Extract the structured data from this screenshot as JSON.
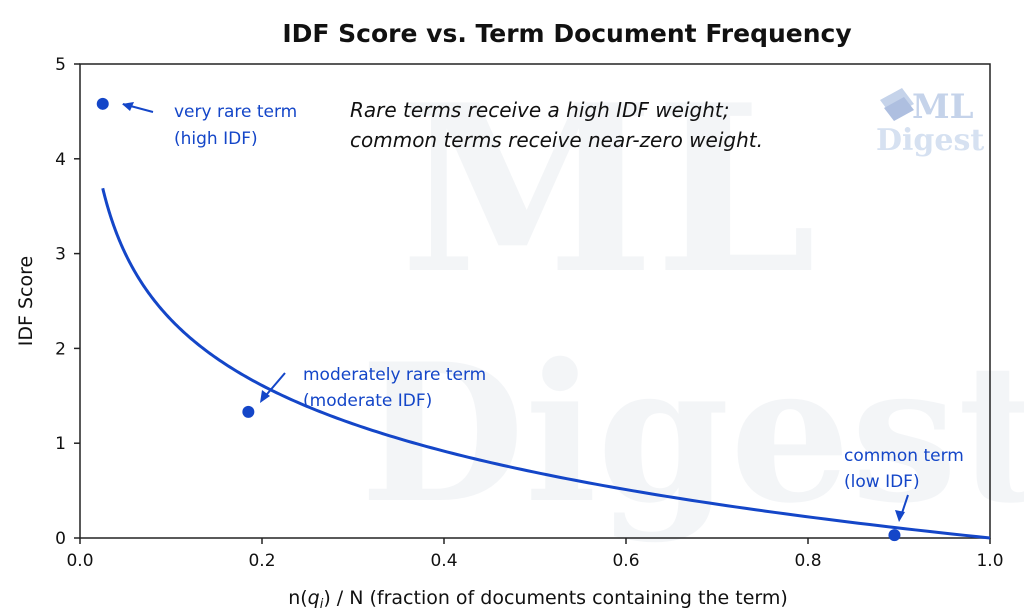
{
  "chart_data": {
    "type": "line",
    "title": "IDF Score vs. Term Document Frequency",
    "xlabel_prefix": "n(",
    "xlabel_var": "q",
    "xlabel_sub": "i",
    "xlabel_suffix": ") / N (fraction of documents containing the term)",
    "ylabel": "IDF Score",
    "xlim": [
      0.0,
      1.0
    ],
    "ylim": [
      0,
      5
    ],
    "xticks": [
      "0.0",
      "0.2",
      "0.4",
      "0.6",
      "0.8",
      "1.0"
    ],
    "yticks": [
      "0",
      "1",
      "2",
      "3",
      "4",
      "5"
    ],
    "curve_function": "-ln(x)",
    "line_color": "#1446c8",
    "grid": false,
    "points": [
      {
        "x": 0.025,
        "y": 4.58,
        "label_line1": "very rare term",
        "label_line2": "(high IDF)"
      },
      {
        "x": 0.185,
        "y": 1.33,
        "label_line1": "moderately rare term",
        "label_line2": "(moderate IDF)"
      },
      {
        "x": 0.895,
        "y": 0.03,
        "label_line1": "common term",
        "label_line2": "(low IDF)"
      }
    ],
    "note_line1": "Rare terms receive a high IDF weight;",
    "note_line2": "common terms receive near-zero weight."
  },
  "watermark": {
    "logo_line1": "ML",
    "logo_line2": "Digest",
    "big_line1": "ML",
    "big_line2": "Digest"
  }
}
